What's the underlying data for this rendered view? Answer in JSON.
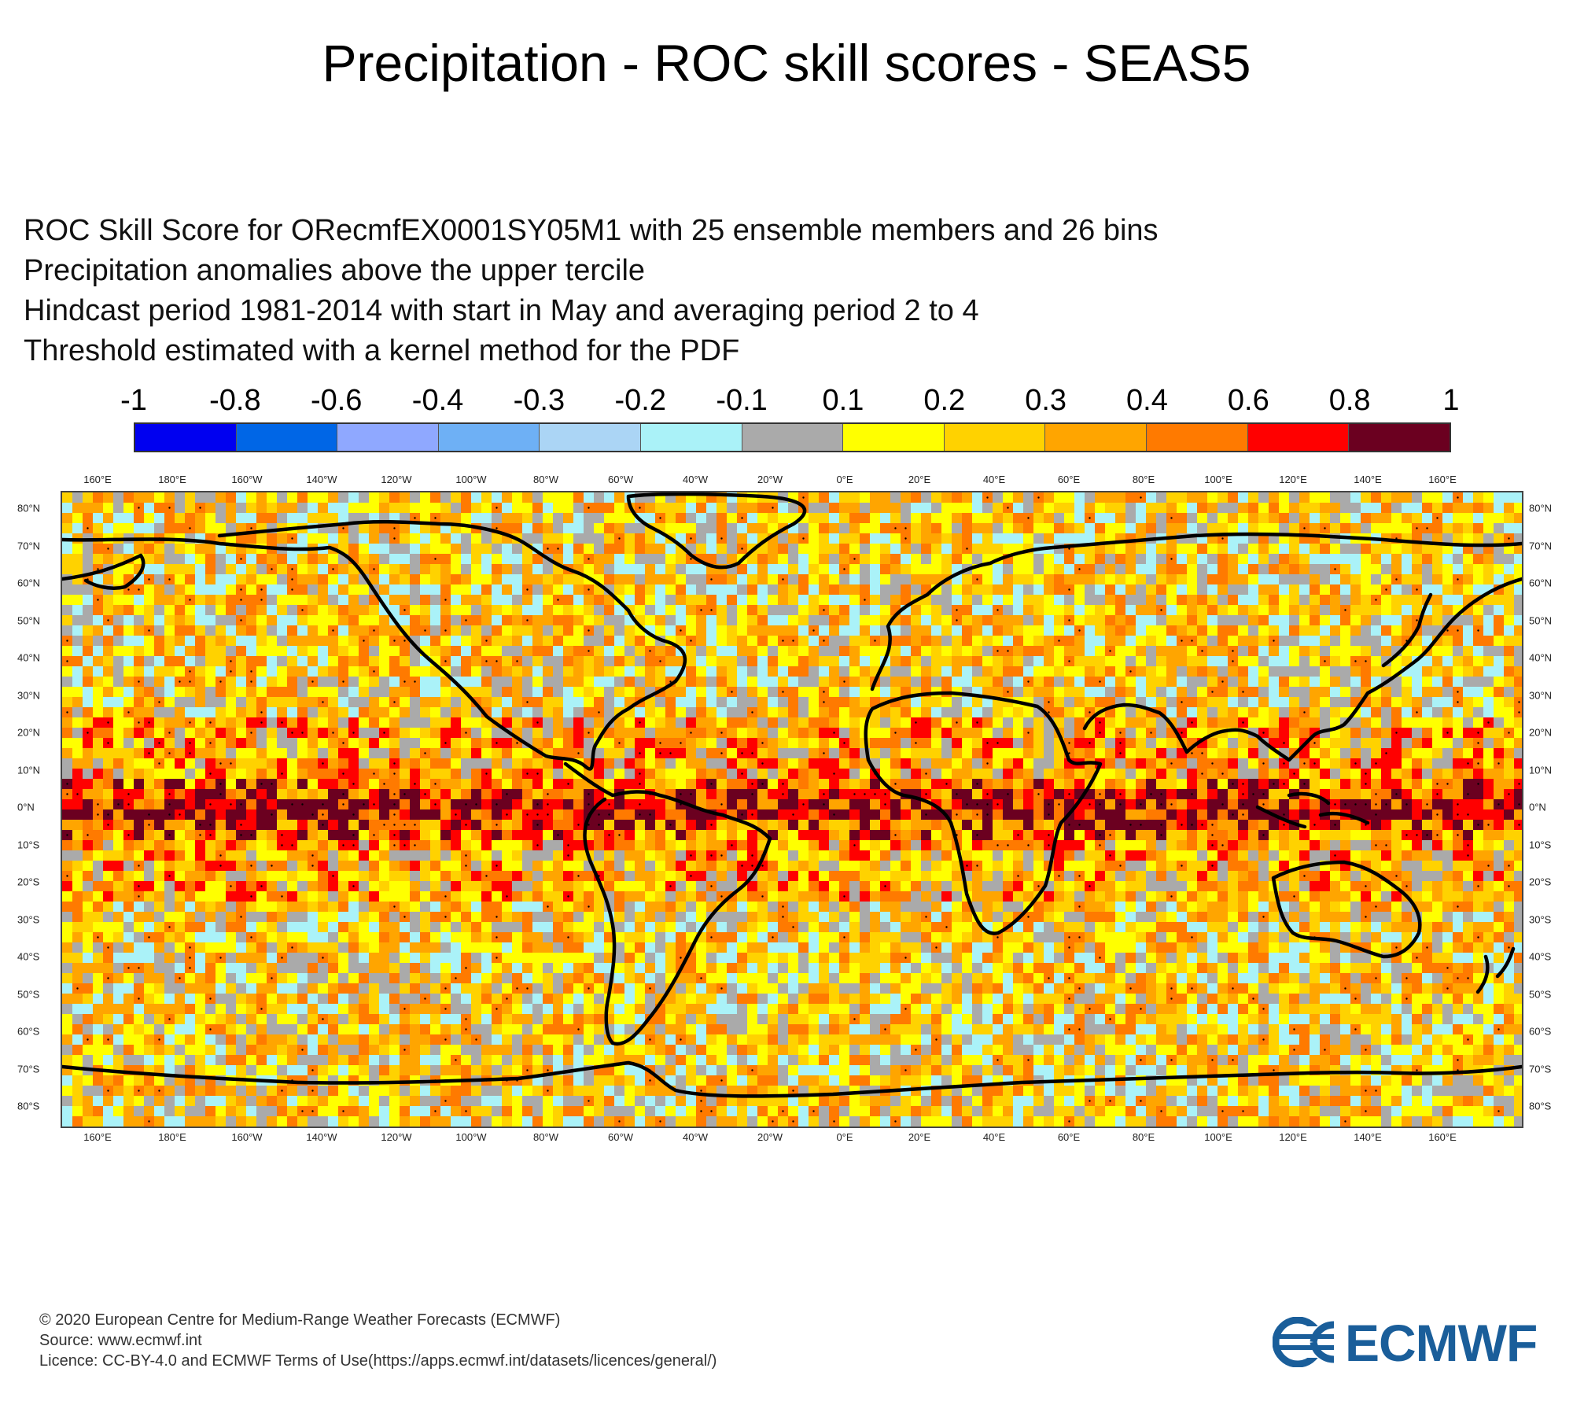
{
  "title": "Precipitation - ROC skill scores - SEAS5",
  "subtitle_lines": [
    "ROC Skill Score for ORecmfEX0001SY05M1 with 25 ensemble members and 26 bins",
    "Precipitation anomalies above the upper tercile",
    "Hindcast period 1981-2014 with start in May and averaging period  2 to  4",
    "Threshold estimated with a kernel method for the PDF"
  ],
  "colorbar": {
    "labels": [
      "-1",
      "-0.8",
      "-0.6",
      "-0.4",
      "-0.3",
      "-0.2",
      "-0.1",
      "0.1",
      "0.2",
      "0.3",
      "0.4",
      "0.6",
      "0.8",
      "1"
    ],
    "colors": [
      "#0000f0",
      "#0066e6",
      "#8fa8ff",
      "#6eb0f5",
      "#abd5f5",
      "#aaf2f8",
      "#aaaaaa",
      "#ffff00",
      "#ffd200",
      "#ffa500",
      "#ff7a00",
      "#ff0000",
      "#6b0020"
    ]
  },
  "map": {
    "lon_labels": [
      "160°E",
      "180°E",
      "160°W",
      "140°W",
      "120°W",
      "100°W",
      "80°W",
      "60°W",
      "40°W",
      "20°W",
      "0°E",
      "20°E",
      "40°E",
      "60°E",
      "80°E",
      "100°E",
      "120°E",
      "140°E",
      "160°E"
    ],
    "lat_labels": [
      "80°N",
      "70°N",
      "60°N",
      "50°N",
      "40°N",
      "30°N",
      "20°N",
      "10°N",
      "0°N",
      "10°S",
      "20°S",
      "30°S",
      "40°S",
      "50°S",
      "60°S",
      "70°S",
      "80°S"
    ],
    "coastline_color": "#000000",
    "significance_dot_color": "#000000"
  },
  "footer": [
    "© 2020 European Centre for Medium-Range Weather Forecasts (ECMWF)",
    "Source: www.ecmwf.int",
    "Licence: CC-BY-4.0 and ECMWF Terms of Use(https://apps.ecmwf.int/datasets/licences/general/)"
  ],
  "logo": {
    "text": "ECMWF",
    "color": "#1a5e9a"
  }
}
